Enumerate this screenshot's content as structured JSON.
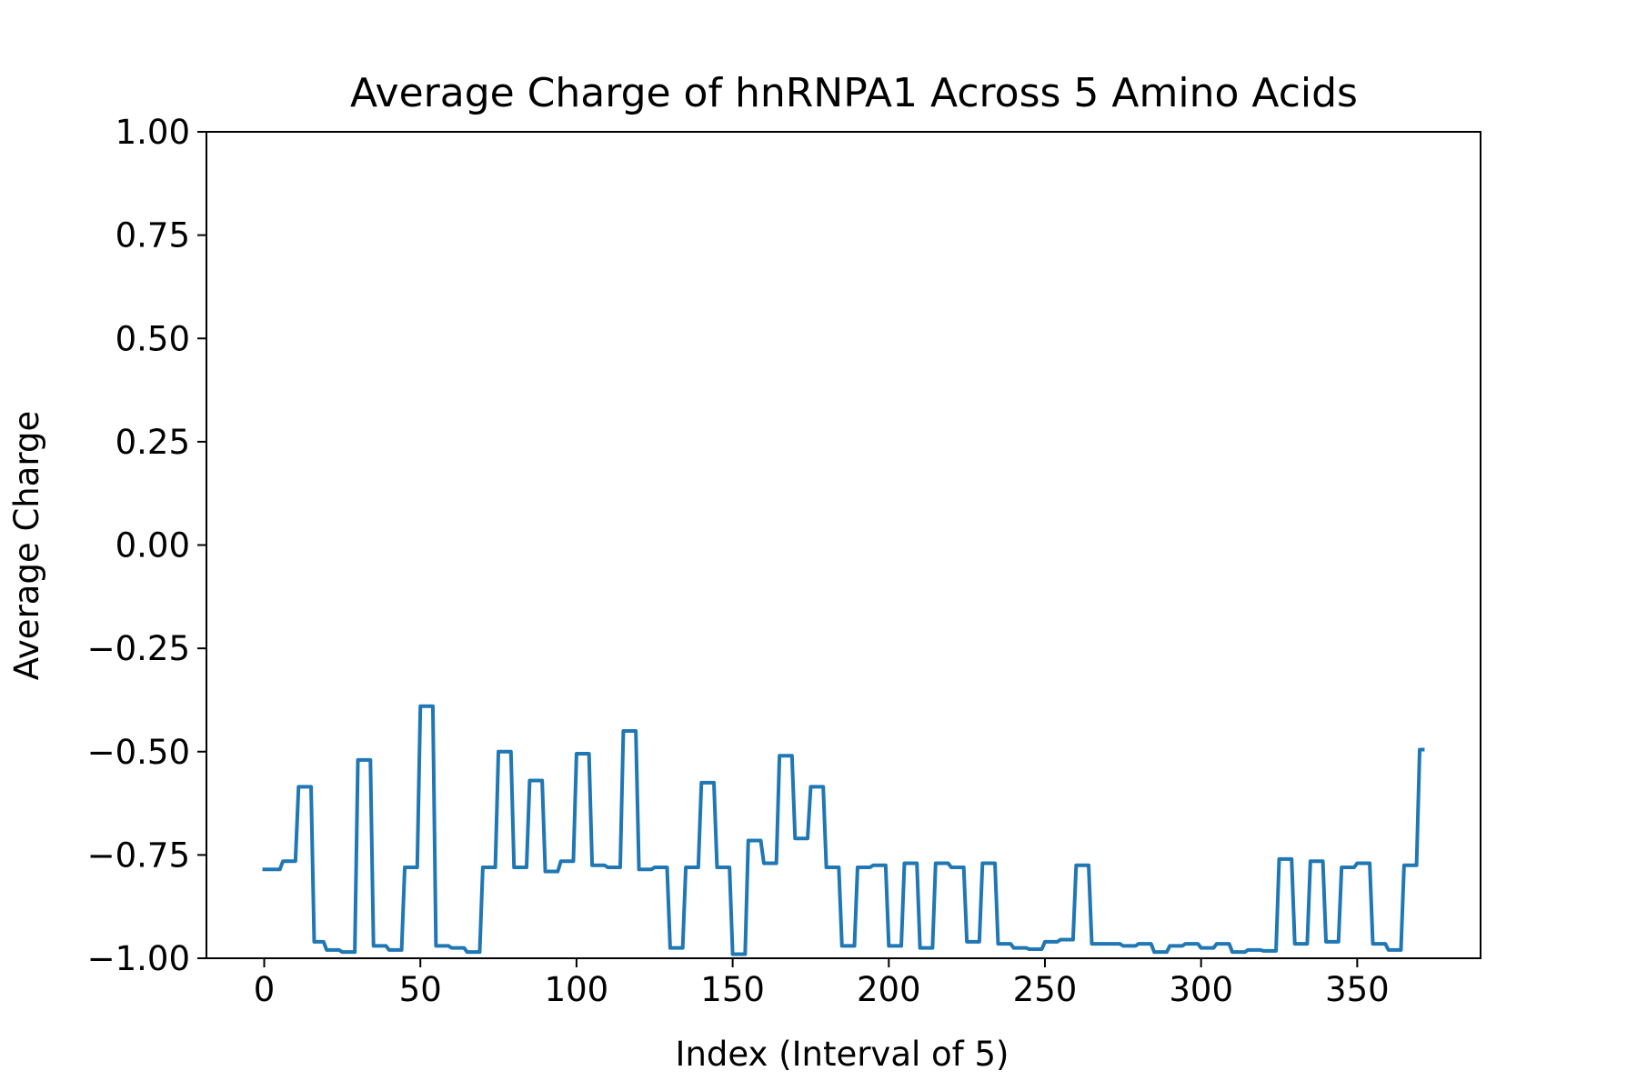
{
  "chart_data": {
    "type": "line",
    "title": "Average Charge of hnRNPA1 Across 5 Amino Acids",
    "xlabel": "Index (Interval of 5)",
    "ylabel": "Average Charge",
    "xlim": [
      -18.5,
      389.5
    ],
    "ylim": [
      -1.0,
      1.0
    ],
    "xticks": [
      0,
      50,
      100,
      150,
      200,
      250,
      300,
      350
    ],
    "xtick_labels": [
      "0",
      "50",
      "100",
      "150",
      "200",
      "250",
      "300",
      "350"
    ],
    "yticks": [
      1.0,
      0.75,
      0.5,
      0.25,
      0.0,
      -0.25,
      -0.5,
      -0.75,
      -1.0
    ],
    "ytick_labels": [
      "1.00",
      "0.75",
      "0.50",
      "0.25",
      "0.00",
      "−0.25",
      "−0.50",
      "−0.75",
      "−1.00"
    ],
    "grid": false,
    "series": [
      {
        "color": "#1f77b4",
        "x": [
          0,
          5,
          6,
          10,
          11,
          15,
          16,
          19,
          20,
          24,
          25,
          29,
          30,
          34,
          35,
          39,
          40,
          44,
          45,
          49,
          50,
          54,
          55,
          59,
          60,
          64,
          65,
          69,
          70,
          74,
          75,
          79,
          80,
          84,
          85,
          89,
          90,
          94,
          95,
          99,
          100,
          104,
          105,
          109,
          110,
          114,
          115,
          119,
          120,
          124,
          125,
          129,
          130,
          134,
          135,
          139,
          140,
          144,
          145,
          149,
          150,
          154,
          155,
          159,
          160,
          164,
          165,
          169,
          170,
          174,
          175,
          179,
          180,
          184,
          185,
          189,
          190,
          194,
          195,
          199,
          200,
          204,
          205,
          209,
          210,
          214,
          215,
          219,
          220,
          224,
          225,
          229,
          230,
          234,
          235,
          239,
          240,
          244,
          245,
          249,
          250,
          254,
          255,
          259,
          260,
          264,
          265,
          269,
          270,
          274,
          275,
          279,
          280,
          284,
          285,
          289,
          290,
          294,
          295,
          299,
          300,
          304,
          305,
          309,
          310,
          314,
          315,
          319,
          320,
          324,
          325,
          329,
          330,
          334,
          335,
          339,
          340,
          344,
          345,
          349,
          350,
          354,
          355,
          359,
          360,
          364,
          365,
          369,
          370,
          371
        ],
        "values": [
          -0.785,
          -0.785,
          -0.765,
          -0.765,
          -0.585,
          -0.585,
          -0.96,
          -0.96,
          -0.98,
          -0.98,
          -0.985,
          -0.985,
          -0.52,
          -0.52,
          -0.97,
          -0.97,
          -0.98,
          -0.98,
          -0.78,
          -0.78,
          -0.39,
          -0.39,
          -0.97,
          -0.97,
          -0.975,
          -0.975,
          -0.985,
          -0.985,
          -0.78,
          -0.78,
          -0.5,
          -0.5,
          -0.78,
          -0.78,
          -0.57,
          -0.57,
          -0.79,
          -0.79,
          -0.765,
          -0.765,
          -0.505,
          -0.505,
          -0.775,
          -0.775,
          -0.78,
          -0.78,
          -0.45,
          -0.45,
          -0.785,
          -0.785,
          -0.78,
          -0.78,
          -0.975,
          -0.975,
          -0.78,
          -0.78,
          -0.575,
          -0.575,
          -0.78,
          -0.78,
          -0.99,
          -0.99,
          -0.715,
          -0.715,
          -0.77,
          -0.77,
          -0.51,
          -0.51,
          -0.71,
          -0.71,
          -0.585,
          -0.585,
          -0.78,
          -0.78,
          -0.97,
          -0.97,
          -0.78,
          -0.78,
          -0.775,
          -0.775,
          -0.97,
          -0.97,
          -0.77,
          -0.77,
          -0.975,
          -0.975,
          -0.77,
          -0.77,
          -0.78,
          -0.78,
          -0.96,
          -0.96,
          -0.77,
          -0.77,
          -0.965,
          -0.965,
          -0.975,
          -0.975,
          -0.978,
          -0.978,
          -0.96,
          -0.96,
          -0.955,
          -0.955,
          -0.775,
          -0.775,
          -0.965,
          -0.965,
          -0.965,
          -0.965,
          -0.97,
          -0.97,
          -0.965,
          -0.965,
          -0.985,
          -0.985,
          -0.97,
          -0.97,
          -0.965,
          -0.965,
          -0.975,
          -0.975,
          -0.965,
          -0.965,
          -0.985,
          -0.985,
          -0.98,
          -0.98,
          -0.982,
          -0.982,
          -0.76,
          -0.76,
          -0.965,
          -0.965,
          -0.765,
          -0.765,
          -0.96,
          -0.96,
          -0.78,
          -0.78,
          -0.77,
          -0.77,
          -0.965,
          -0.965,
          -0.98,
          -0.98,
          -0.775,
          -0.775,
          -0.495,
          -0.495
        ]
      }
    ]
  }
}
